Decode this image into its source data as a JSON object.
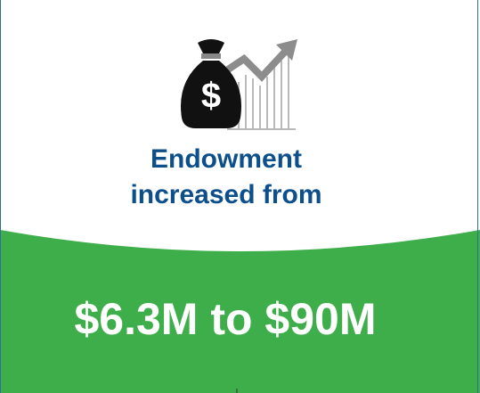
{
  "icon_symbol": "$",
  "heading_lines": [
    "Endowment",
    "increased from"
  ],
  "highlight": "$6.3M to $90M"
}
